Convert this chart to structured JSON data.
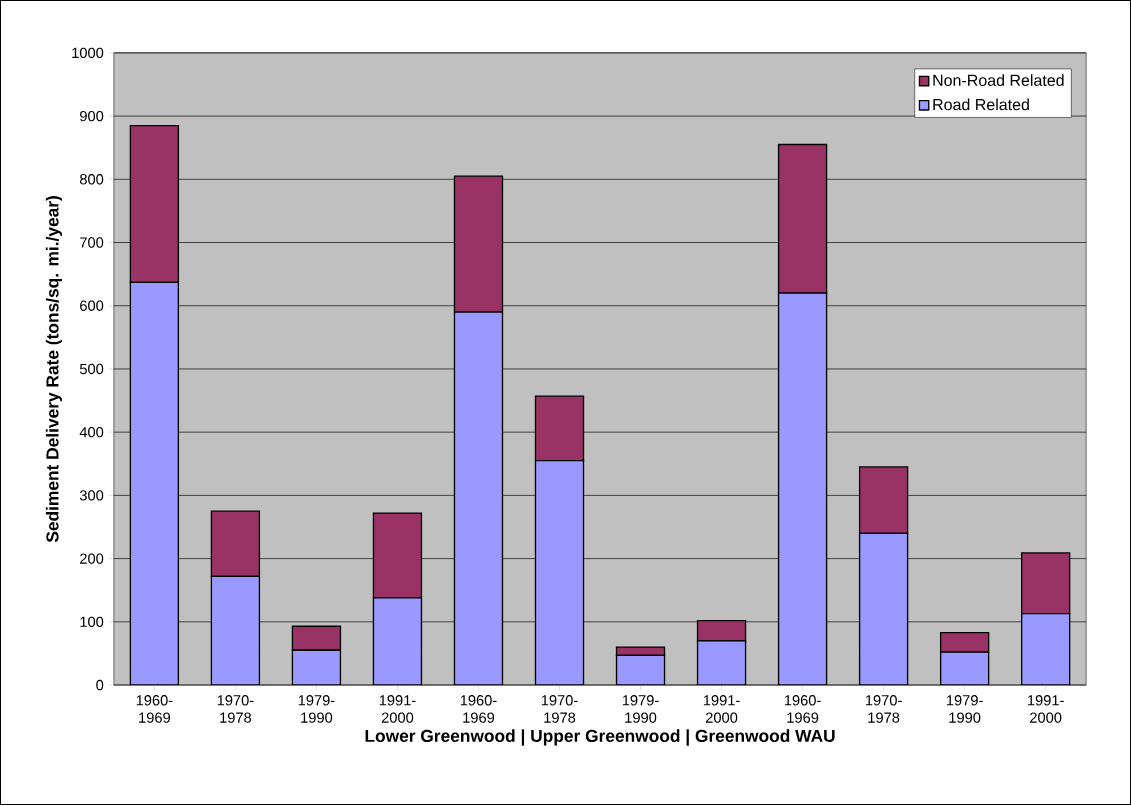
{
  "chart_data": {
    "type": "bar",
    "stacked": true,
    "xlabel": "Lower Greenwood | Upper Greenwood | Greenwood WAU",
    "ylabel": "Sediment Delivery Rate (tons/sq. mi./year)",
    "categories": [
      "1960-1969",
      "1970-1978",
      "1979-1990",
      "1991-2000",
      "1960-1969",
      "1970-1978",
      "1979-1990",
      "1991-2000",
      "1960-1969",
      "1970-1978",
      "1979-1990",
      "1991-2000"
    ],
    "series": [
      {
        "name": "Road Related",
        "color": "#9999ff",
        "values": [
          637,
          172,
          55,
          138,
          590,
          355,
          47,
          70,
          620,
          240,
          52,
          113
        ]
      },
      {
        "name": "Non-Road Related",
        "color": "#993366",
        "values": [
          248,
          103,
          38,
          134,
          215,
          102,
          13,
          32,
          235,
          105,
          31,
          96
        ]
      }
    ],
    "ylim": [
      0,
      1000
    ],
    "yticks": [
      0,
      100,
      200,
      300,
      400,
      500,
      600,
      700,
      800,
      900,
      1000
    ],
    "grid": "y",
    "legend": "top right"
  }
}
